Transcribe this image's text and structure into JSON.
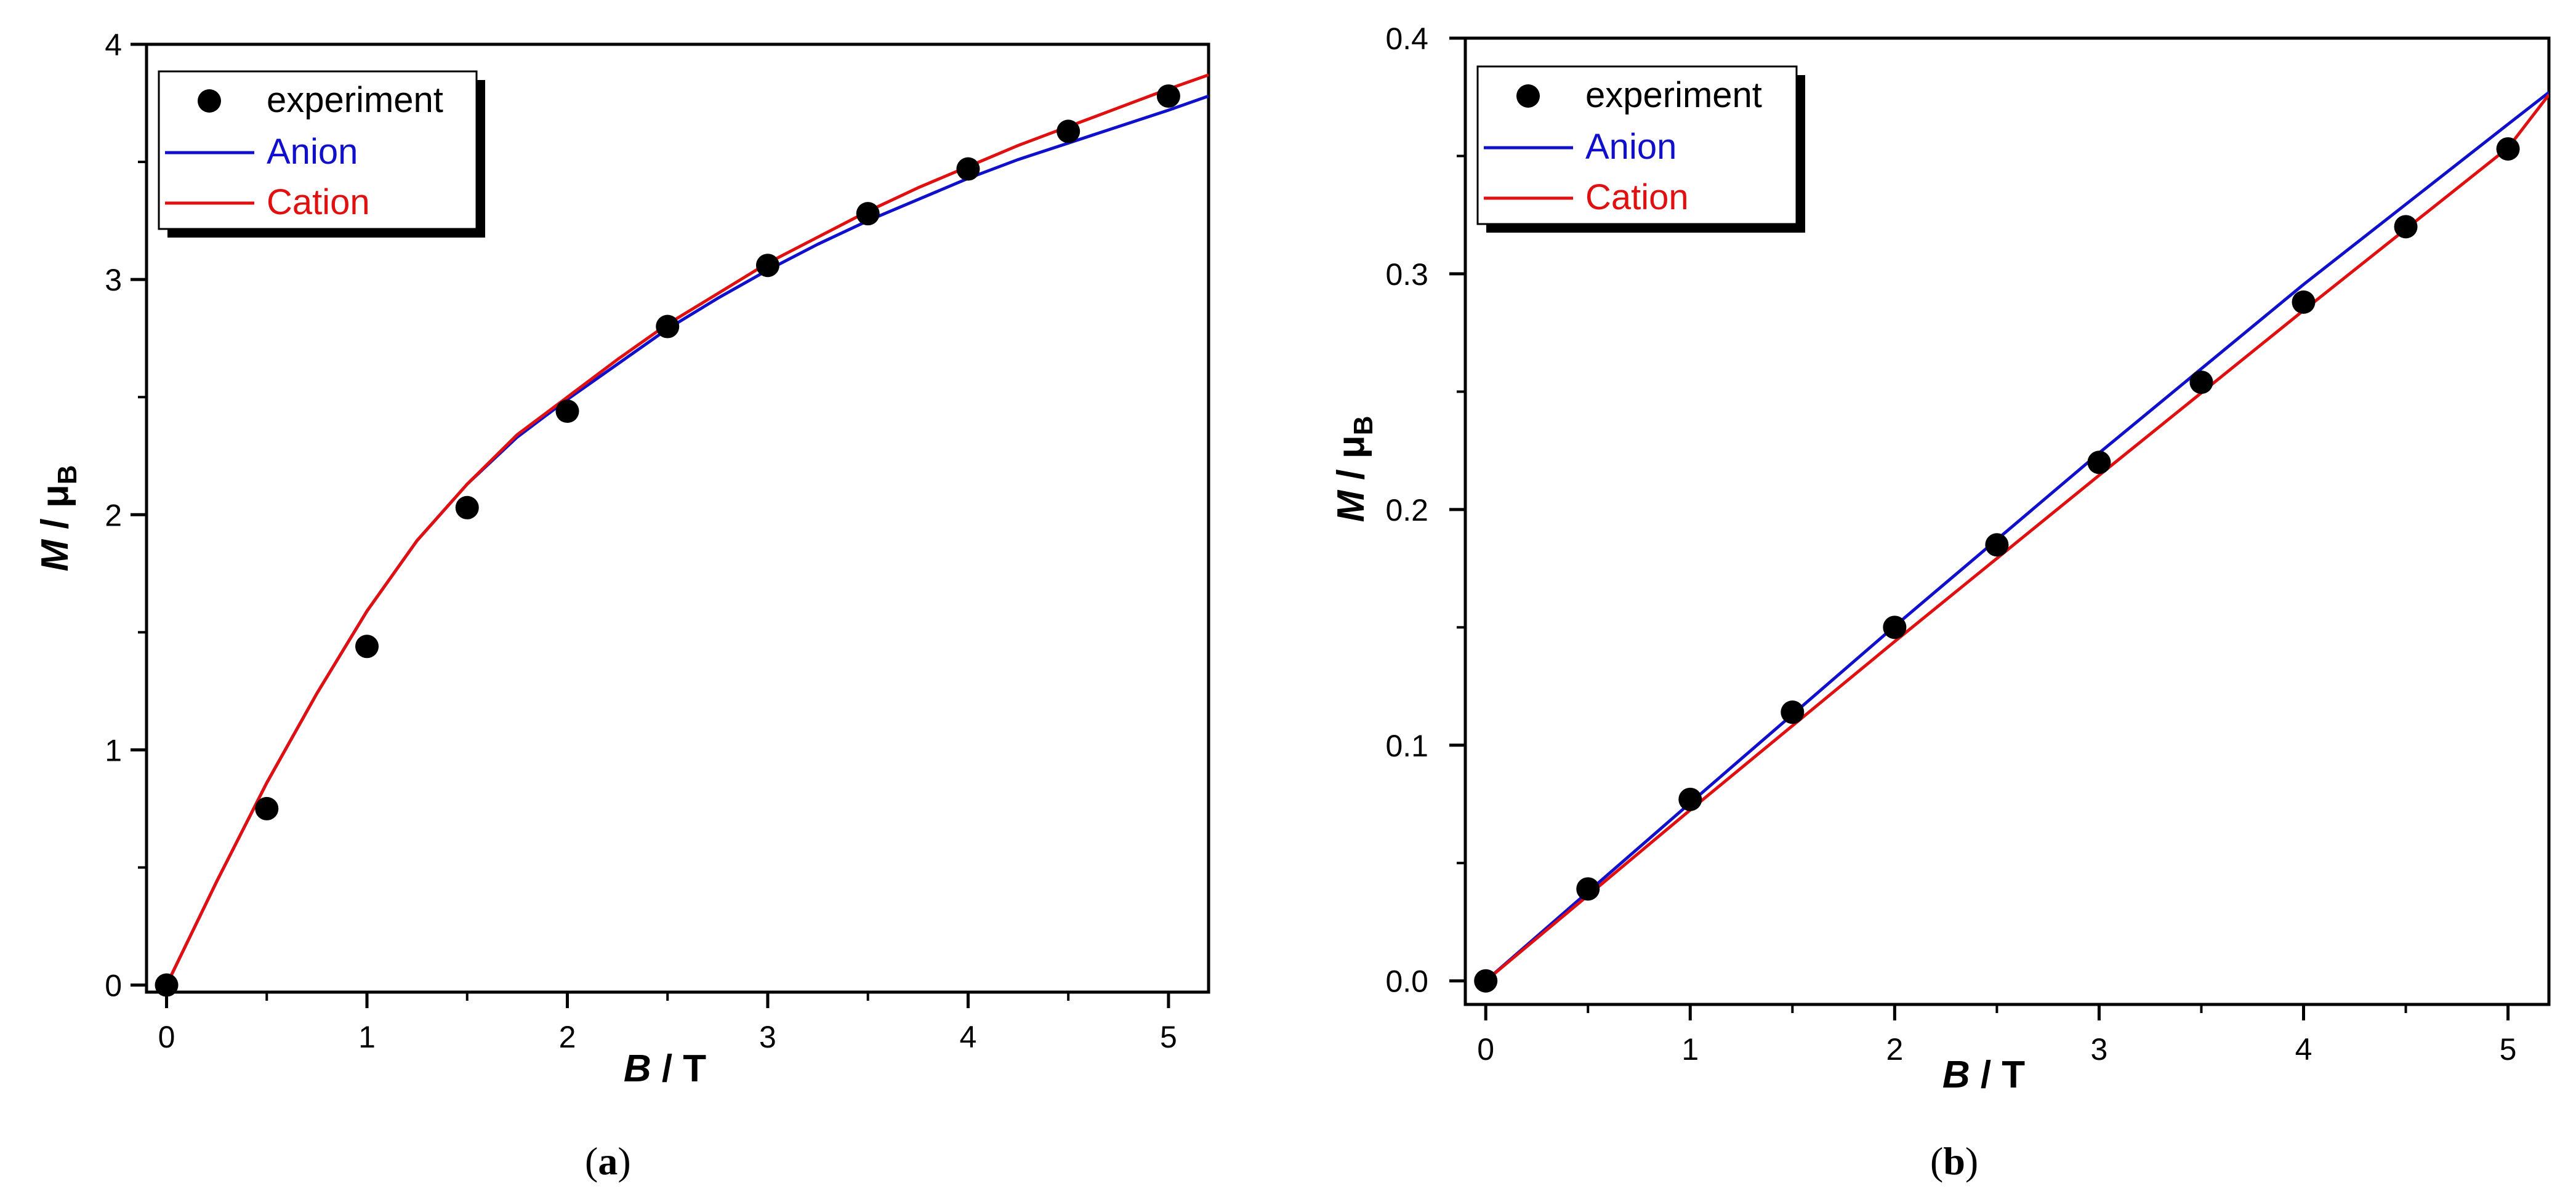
{
  "chart_data": [
    {
      "type": "line",
      "panel_label": "a",
      "xlabel": {
        "var": "B",
        "unit": " / T"
      },
      "ylabel": {
        "var": "M",
        "sep": " / μ",
        "sub": "B"
      },
      "xlim": [
        -0.1,
        5.2
      ],
      "ylim": [
        -0.03,
        4.0
      ],
      "xticks": [
        0,
        1,
        2,
        3,
        4,
        5
      ],
      "xtick_labels": [
        "0",
        "1",
        "2",
        "3",
        "4",
        "5"
      ],
      "yticks": [
        0,
        1,
        2,
        3,
        4
      ],
      "ytick_labels": [
        "0",
        "1",
        "2",
        "3",
        "4"
      ],
      "legend": {
        "placement": "top-left",
        "entries": [
          "experiment",
          "Anion",
          "Cation"
        ]
      },
      "points": {
        "name": "experiment",
        "color": "#000000",
        "x": [
          0,
          0.5,
          1,
          1.5,
          2,
          2.5,
          3,
          3.5,
          4,
          4.5,
          5
        ],
        "y": [
          0.0,
          0.75,
          1.44,
          2.03,
          2.44,
          2.8,
          3.06,
          3.28,
          3.47,
          3.63,
          3.78
        ]
      },
      "series": [
        {
          "name": "Anion",
          "color": "#1010cc",
          "x": [
            0,
            0.25,
            0.5,
            0.75,
            1,
            1.25,
            1.5,
            1.75,
            2,
            2.25,
            2.5,
            2.75,
            3,
            3.25,
            3.5,
            3.75,
            4,
            4.25,
            4.5,
            4.75,
            5,
            5.2
          ],
          "y": [
            0.0,
            0.44,
            0.86,
            1.24,
            1.59,
            1.89,
            2.13,
            2.33,
            2.49,
            2.64,
            2.79,
            2.92,
            3.04,
            3.15,
            3.25,
            3.34,
            3.43,
            3.51,
            3.58,
            3.65,
            3.72,
            3.78
          ]
        },
        {
          "name": "Cation",
          "color": "#e01010",
          "x": [
            0,
            0.25,
            0.5,
            0.75,
            1,
            1.25,
            1.5,
            1.75,
            2,
            2.25,
            2.5,
            2.75,
            3,
            3.25,
            3.5,
            3.75,
            4,
            4.25,
            4.5,
            4.75,
            5,
            5.2
          ],
          "y": [
            0.0,
            0.44,
            0.86,
            1.24,
            1.59,
            1.89,
            2.13,
            2.34,
            2.5,
            2.66,
            2.81,
            2.94,
            3.07,
            3.18,
            3.29,
            3.39,
            3.48,
            3.57,
            3.65,
            3.73,
            3.81,
            3.87
          ]
        }
      ]
    },
    {
      "type": "line",
      "panel_label": "b",
      "xlabel": {
        "var": "B",
        "unit": " / T"
      },
      "ylabel": {
        "var": "M",
        "sep": " / μ",
        "sub": "B"
      },
      "xlim": [
        -0.1,
        5.2
      ],
      "ylim": [
        -0.01,
        0.4
      ],
      "xticks": [
        0,
        1,
        2,
        3,
        4,
        5
      ],
      "xtick_labels": [
        "0",
        "1",
        "2",
        "3",
        "4",
        "5"
      ],
      "yticks": [
        0,
        0.1,
        0.2,
        0.3,
        0.4
      ],
      "ytick_labels": [
        "0.0",
        "0.1",
        "0.2",
        "0.3",
        "0.4"
      ],
      "legend": {
        "placement": "top-left",
        "entries": [
          "experiment",
          "Anion",
          "Cation"
        ]
      },
      "points": {
        "name": "experiment",
        "color": "#000000",
        "x": [
          0,
          0.5,
          1,
          1.5,
          2,
          2.5,
          3,
          3.5,
          4,
          4.5,
          5
        ],
        "y": [
          0.0,
          0.039,
          0.077,
          0.114,
          0.15,
          0.185,
          0.22,
          0.254,
          0.288,
          0.32,
          0.353
        ]
      },
      "series": [
        {
          "name": "Anion",
          "color": "#1010cc",
          "x": [
            0,
            1,
            2,
            3,
            4,
            5,
            5.2
          ],
          "y": [
            0.0,
            0.0755,
            0.1505,
            0.224,
            0.2955,
            0.3635,
            0.377
          ]
        },
        {
          "name": "Cation",
          "color": "#e01010",
          "x": [
            0,
            1,
            2,
            3,
            4,
            5,
            5.2
          ],
          "y": [
            0.0,
            0.0725,
            0.144,
            0.2145,
            0.2845,
            0.3535,
            0.376
          ]
        }
      ]
    }
  ]
}
